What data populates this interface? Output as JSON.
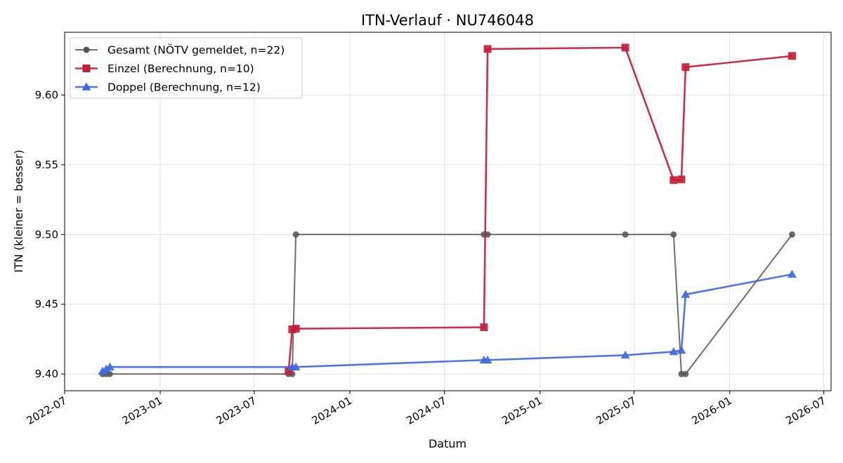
{
  "chart_data": {
    "type": "line",
    "title": "ITN-Verlauf · NU746048",
    "xlabel": "Datum",
    "ylabel": "ITN  (kleiner = besser)",
    "x_axis_type": "date",
    "xlim": [
      "2022-07-01",
      "2026-07-15"
    ],
    "ylim": [
      9.388,
      9.645
    ],
    "x_ticks": [
      "2022-07-01",
      "2023-01-01",
      "2023-07-01",
      "2024-01-01",
      "2024-07-01",
      "2025-01-01",
      "2025-07-01",
      "2026-01-01",
      "2026-07-01"
    ],
    "x_tick_labels": [
      "2022-07",
      "2023-01",
      "2023-07",
      "2024-01",
      "2024-07",
      "2025-01",
      "2025-07",
      "2026-01",
      "2026-07"
    ],
    "y_ticks": [
      9.4,
      9.45,
      9.5,
      9.55,
      9.6
    ],
    "y_tick_labels": [
      "9.40",
      "9.45",
      "9.50",
      "9.55",
      "9.60"
    ],
    "grid": true,
    "legend_position": "top-left",
    "series": [
      {
        "name": "Gesamt (NÖTV gemeldet, n=22)",
        "color": "#555555",
        "marker": "circle",
        "points": [
          {
            "x": "2022-09-12",
            "y": 9.4
          },
          {
            "x": "2022-09-19",
            "y": 9.4
          },
          {
            "x": "2022-09-26",
            "y": 9.4
          },
          {
            "x": "2023-09-05",
            "y": 9.4
          },
          {
            "x": "2023-09-12",
            "y": 9.4
          },
          {
            "x": "2023-09-19",
            "y": 9.5
          },
          {
            "x": "2024-09-15",
            "y": 9.5
          },
          {
            "x": "2024-09-22",
            "y": 9.5
          },
          {
            "x": "2025-06-14",
            "y": 9.5
          },
          {
            "x": "2025-09-15",
            "y": 9.5
          },
          {
            "x": "2025-09-30",
            "y": 9.4
          },
          {
            "x": "2025-10-08",
            "y": 9.4
          },
          {
            "x": "2026-05-01",
            "y": 9.5
          }
        ]
      },
      {
        "name": "Einzel (Berechnung, n=10)",
        "color": "#c41e3a",
        "marker": "square",
        "points": [
          {
            "x": "2023-09-05",
            "y": 9.402
          },
          {
            "x": "2023-09-12",
            "y": 9.432
          },
          {
            "x": "2023-09-19",
            "y": 9.4325
          },
          {
            "x": "2024-09-15",
            "y": 9.4335
          },
          {
            "x": "2024-09-22",
            "y": 9.633
          },
          {
            "x": "2025-06-14",
            "y": 9.634
          },
          {
            "x": "2025-09-15",
            "y": 9.539
          },
          {
            "x": "2025-09-30",
            "y": 9.5395
          },
          {
            "x": "2025-10-08",
            "y": 9.62
          },
          {
            "x": "2026-05-01",
            "y": 9.628
          }
        ]
      },
      {
        "name": "Doppel (Berechnung, n=12)",
        "color": "#4169e1",
        "marker": "triangle",
        "points": [
          {
            "x": "2022-09-12",
            "y": 9.402
          },
          {
            "x": "2022-09-19",
            "y": 9.4035
          },
          {
            "x": "2022-09-26",
            "y": 9.405
          },
          {
            "x": "2023-09-12",
            "y": 9.405
          },
          {
            "x": "2023-09-19",
            "y": 9.405
          },
          {
            "x": "2024-09-15",
            "y": 9.41
          },
          {
            "x": "2024-09-22",
            "y": 9.41
          },
          {
            "x": "2025-06-14",
            "y": 9.4135
          },
          {
            "x": "2025-09-15",
            "y": 9.416
          },
          {
            "x": "2025-09-30",
            "y": 9.417
          },
          {
            "x": "2025-10-08",
            "y": 9.457
          },
          {
            "x": "2026-05-01",
            "y": 9.4715
          }
        ]
      }
    ]
  }
}
